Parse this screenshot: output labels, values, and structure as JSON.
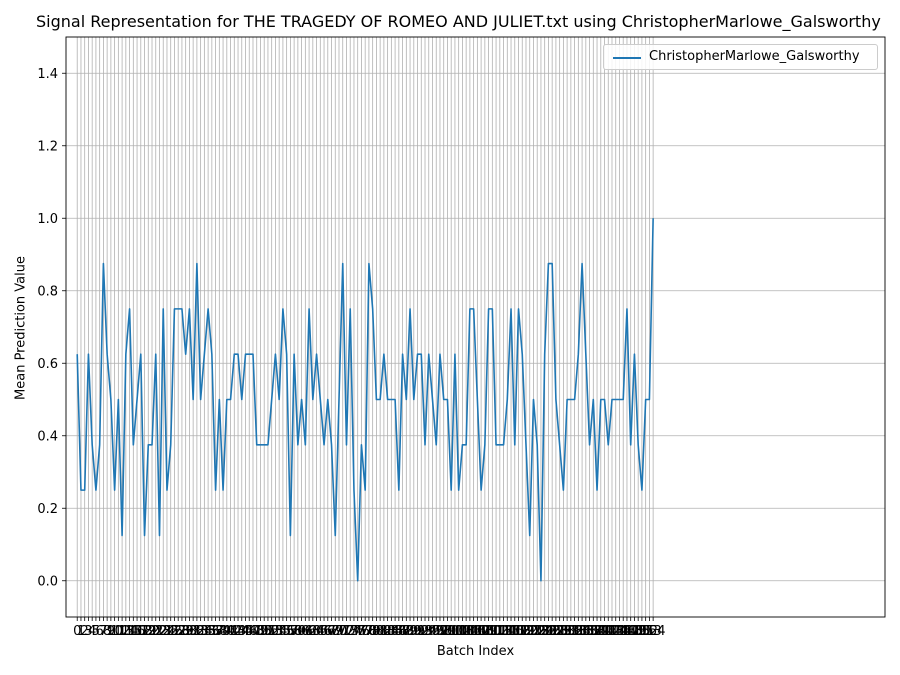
{
  "chart_data": {
    "type": "line",
    "title": "Signal Representation for THE TRAGEDY OF ROMEO AND JULIET.txt using ChristopherMarlowe_Galsworthy",
    "xlabel": "Batch Index",
    "ylabel": "Mean Prediction Value",
    "ylim": [
      -0.1,
      1.5
    ],
    "yticks": [
      0.0,
      0.2,
      0.4,
      0.6,
      0.8,
      1.0,
      1.2,
      1.4
    ],
    "xlim": [
      -3,
      216
    ],
    "grid": true,
    "legend_position": "upper right",
    "series": [
      {
        "name": "ChristopherMarlowe_Galsworthy",
        "color": "#1f77b4",
        "values": [
          0.625,
          0.25,
          0.25,
          0.625,
          0.375,
          0.25,
          0.375,
          0.875,
          0.625,
          0.5,
          0.25,
          0.5,
          0.125,
          0.625,
          0.75,
          0.375,
          0.5,
          0.625,
          0.125,
          0.375,
          0.375,
          0.625,
          0.125,
          0.75,
          0.25,
          0.375,
          0.75,
          0.75,
          0.75,
          0.625,
          0.75,
          0.5,
          0.875,
          0.5,
          0.625,
          0.75,
          0.625,
          0.25,
          0.5,
          0.25,
          0.5,
          0.5,
          0.625,
          0.625,
          0.5,
          0.625,
          0.625,
          0.625,
          0.375,
          0.375,
          0.375,
          0.375,
          0.5,
          0.625,
          0.5,
          0.75,
          0.625,
          0.125,
          0.625,
          0.375,
          0.5,
          0.375,
          0.75,
          0.5,
          0.625,
          0.5,
          0.375,
          0.5,
          0.375,
          0.125,
          0.5,
          0.875,
          0.375,
          0.75,
          0.25,
          0.0,
          0.375,
          0.25,
          0.875,
          0.75,
          0.5,
          0.5,
          0.625,
          0.5,
          0.5,
          0.5,
          0.25,
          0.625,
          0.5,
          0.75,
          0.5,
          0.625,
          0.625,
          0.375,
          0.625,
          0.5,
          0.375,
          0.625,
          0.5,
          0.5,
          0.25,
          0.625,
          0.25,
          0.375,
          0.375,
          0.75,
          0.75,
          0.5,
          0.25,
          0.375,
          0.75,
          0.75,
          0.375,
          0.375,
          0.375,
          0.5,
          0.75,
          0.375,
          0.75,
          0.625,
          0.375,
          0.125,
          0.5,
          0.375,
          0.0,
          0.625,
          0.875,
          0.875,
          0.5,
          0.375,
          0.25,
          0.5,
          0.5,
          0.5,
          0.625,
          0.875,
          0.625,
          0.375,
          0.5,
          0.25,
          0.5,
          0.5,
          0.375,
          0.5,
          0.5,
          0.5,
          0.5,
          0.75,
          0.375,
          0.625,
          0.375,
          0.25,
          0.5,
          0.5,
          1.0
        ],
        "x_start": 0
      }
    ]
  }
}
